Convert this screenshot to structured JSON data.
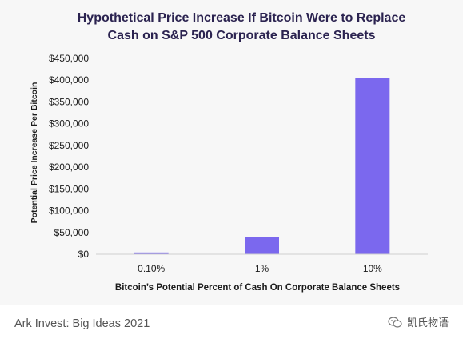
{
  "chart_data": {
    "type": "bar",
    "title": "Hypothetical Price Increase If Bitcoin Were to Replace Cash on S&P 500 Corporate Balance Sheets",
    "title_lines": [
      "Hypothetical Price Increase If Bitcoin Were to Replace",
      "Cash on S&P 500 Corporate Balance Sheets"
    ],
    "categories": [
      "0.10%",
      "1%",
      "10%"
    ],
    "values": [
      4000,
      40000,
      405000
    ],
    "xlabel": "Bitcoin’s Potential Percent of Cash On Corporate Balance Sheets",
    "ylabel": "Potential Price Increase Per Bitcoin",
    "ylim": [
      0,
      450000
    ],
    "yticks": [
      0,
      50000,
      100000,
      150000,
      200000,
      250000,
      300000,
      350000,
      400000,
      450000
    ],
    "ytick_labels": [
      "$0",
      "$50,000",
      "$100,000",
      "$150,000",
      "$200,000",
      "$250,000",
      "$300,000",
      "$350,000",
      "$400,000",
      "$450,000"
    ],
    "bar_color": "#7b68ee",
    "grid": false,
    "legend": "none"
  },
  "caption": "Ark Invest: Big Ideas 2021",
  "watermark": {
    "icon": "wechat-icon",
    "text": "凯氏物语"
  }
}
